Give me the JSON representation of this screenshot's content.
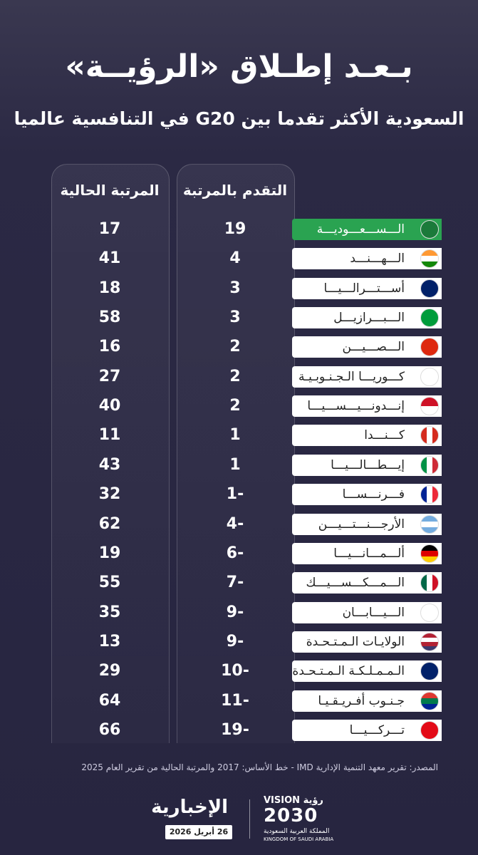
{
  "header": {
    "title": "بـعـد إطـلاق «الرؤيــة»",
    "subtitle": "السعودية الأكثر تقدما بين G20 في التنافسية  عالميا"
  },
  "table": {
    "columns": [
      "التقدم بالمرتبة",
      "المرتبة الحالية"
    ],
    "rows": [
      [
        "الـــســـعـــوديـــة",
        19,
        17
      ],
      [
        "الـــهـــنـــد",
        4,
        41
      ],
      [
        "أســـتـــرالـــيـــا",
        3,
        18
      ],
      [
        "الـــبـــرازيـــل",
        3,
        58
      ],
      [
        "الـــصـــيـــن",
        2,
        16
      ],
      [
        "كـــوريـــا الـجـنـوبـيـة",
        2,
        27
      ],
      [
        "إنـــدونـــيـــســـيـــا",
        2,
        40
      ],
      [
        "كـــنـــدا",
        1,
        11
      ],
      [
        "إيـــطـــالـــيـــا",
        1,
        43
      ],
      [
        "فـــرنـــســـا",
        -1,
        32
      ],
      [
        "الأرجـــنـــتـــيـــن",
        -4,
        62
      ],
      [
        "ألـــمـــانـــيـــا",
        -6,
        19
      ],
      [
        "الـــمـــكـــســـيـــك",
        -7,
        55
      ],
      [
        "الـــيـــابـــان",
        -9,
        35
      ],
      [
        "الولايـات الـمـتـحـدة",
        -9,
        13
      ],
      [
        "الـمـمـلـكـة الـمـتـحـدة",
        -10,
        29
      ],
      [
        "جـنـوب أفـريـقـيـا",
        -11,
        64
      ],
      [
        "تـــركـــيـــا",
        -19,
        66
      ]
    ]
  },
  "source": "المصدر: تقرير معهد التنمية الإدارية IMD - خط الأساس: 2017 والمرتبة الحالية من تقرير العام 2025",
  "footer": {
    "brand": "الإخبارية",
    "date": "26 أبريل 2026",
    "vision_label": "VISION رؤية",
    "vision_year": "2030",
    "kingdom_ar": "المملكة العربية السعودية",
    "kingdom_en": "KINGDOM OF SAUDI ARABIA"
  }
}
